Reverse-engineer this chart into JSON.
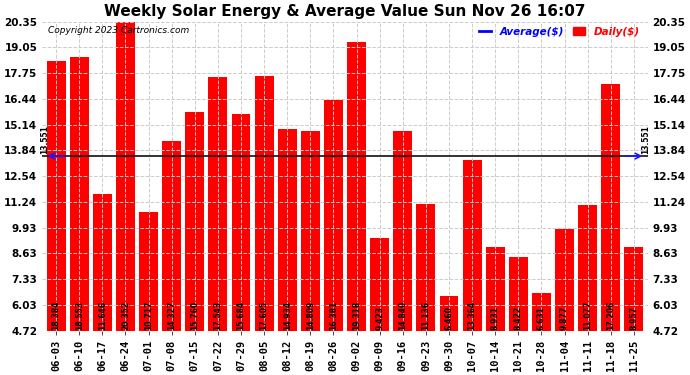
{
  "title": "Weekly Solar Energy & Average Value Sun Nov 26 16:07",
  "copyright": "Copyright 2023 Cartronics.com",
  "legend_average": "Average($)",
  "legend_daily": "Daily($)",
  "categories": [
    "06-03",
    "06-10",
    "06-17",
    "06-24",
    "07-01",
    "07-08",
    "07-15",
    "07-22",
    "07-29",
    "08-05",
    "08-12",
    "08-19",
    "08-26",
    "09-02",
    "09-09",
    "09-16",
    "09-23",
    "09-30",
    "10-07",
    "10-14",
    "10-21",
    "10-28",
    "11-04",
    "11-11",
    "11-18",
    "11-25"
  ],
  "values": [
    18.384,
    18.553,
    11.646,
    20.352,
    10.717,
    14.327,
    15.76,
    17.543,
    15.684,
    17.605,
    14.934,
    14.809,
    16.381,
    19.318,
    9.423,
    14.84,
    11.136,
    6.46,
    13.364,
    8.931,
    8.422,
    6.631,
    9.877,
    11.077,
    17.206,
    8.957
  ],
  "average_value": 13.551,
  "bar_color": "#ff0000",
  "average_line_color": "#1a1aff",
  "yticks": [
    4.72,
    6.03,
    7.33,
    8.63,
    9.93,
    11.24,
    12.54,
    13.84,
    15.14,
    16.44,
    17.75,
    19.05,
    20.35
  ],
  "ymin": 4.72,
  "ymax": 20.35,
  "background_color": "#ffffff",
  "grid_color": "#cccccc",
  "bar_value_fontsize": 5.5,
  "title_fontsize": 11,
  "tick_fontsize": 7.5,
  "avg_label": "13.551",
  "avg_label_color": "#000000",
  "avg_legend_color": "#0000ff",
  "daily_legend_color": "#ff0000"
}
